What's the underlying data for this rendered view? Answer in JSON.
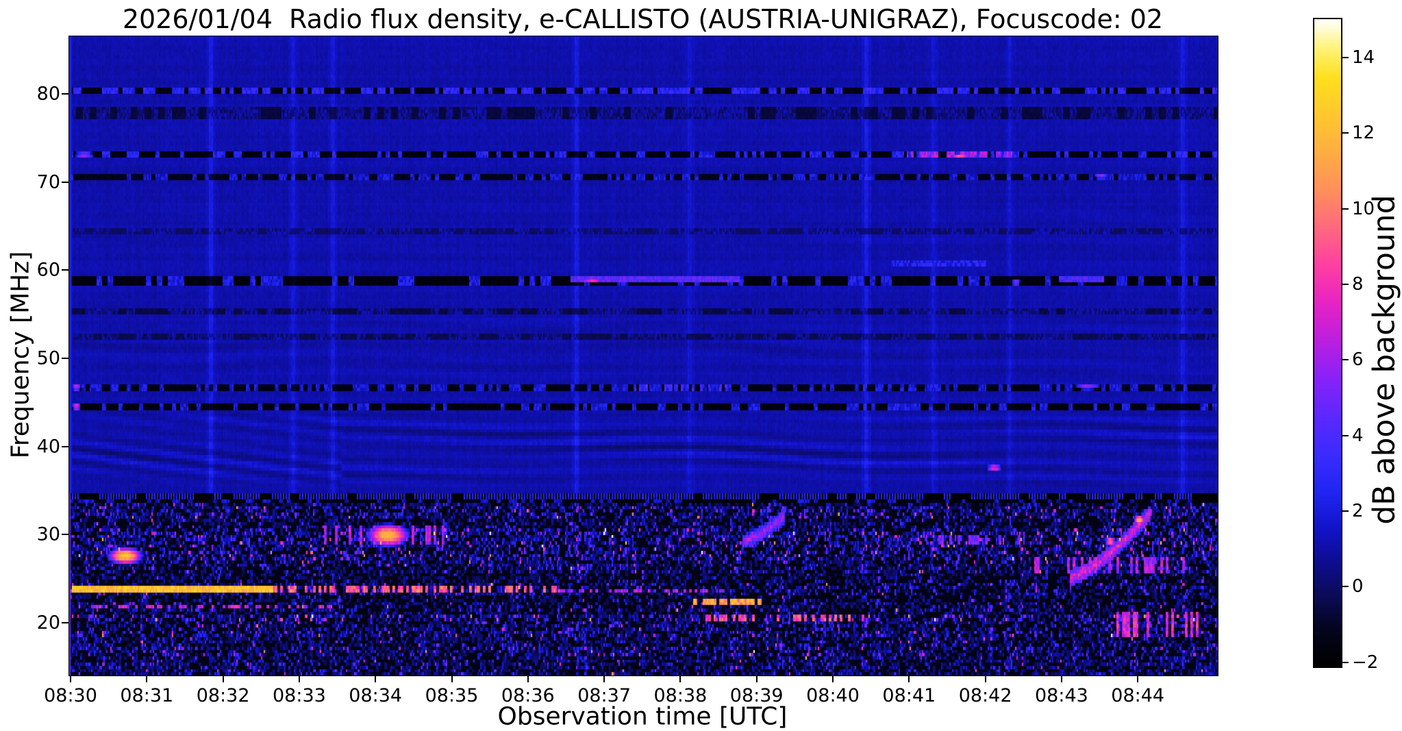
{
  "chart_data": {
    "type": "heatmap",
    "subtype": "radio-spectrogram",
    "title": "2026/01/04  Radio flux density, e-CALLISTO (AUSTRIA-UNIGRAZ), Focuscode: 02",
    "xlabel": "Observation time [UTC]",
    "ylabel": "Frequency [MHz]",
    "colorbar_label": "dB above background",
    "x_ticks": [
      "08:30",
      "08:31",
      "08:32",
      "08:33",
      "08:34",
      "08:35",
      "08:36",
      "08:37",
      "08:38",
      "08:39",
      "08:40",
      "08:41",
      "08:42",
      "08:43",
      "08:44"
    ],
    "time_start": "08:30",
    "time_end": "08:45",
    "x_span_minutes": 15.07,
    "y_ticks": [
      80,
      70,
      60,
      50,
      40,
      30,
      20
    ],
    "ylim": [
      14.1,
      86.6
    ],
    "colorbar_ticks": [
      {
        "v": 14,
        "label": "14"
      },
      {
        "v": 12,
        "label": "12"
      },
      {
        "v": 10,
        "label": "10"
      },
      {
        "v": 8,
        "label": "8"
      },
      {
        "v": 6,
        "label": "6"
      },
      {
        "v": 4,
        "label": "4"
      },
      {
        "v": 2,
        "label": "2"
      },
      {
        "v": 0,
        "label": "0"
      },
      {
        "v": -2,
        "label": "−2"
      }
    ],
    "colorbar_range": [
      -2.15,
      15.05
    ],
    "grid": false,
    "legend": "none",
    "colormap": [
      [
        -2.15,
        "#000000"
      ],
      [
        -1.2,
        "#04041c"
      ],
      [
        -0.3,
        "#0b0b55"
      ],
      [
        0.6,
        "#0d0d8f"
      ],
      [
        1.5,
        "#1113c8"
      ],
      [
        2.5,
        "#2026f2"
      ],
      [
        3.5,
        "#3c2bff"
      ],
      [
        4.5,
        "#5c28ff"
      ],
      [
        5.5,
        "#8822f8"
      ],
      [
        6.5,
        "#bb1fe0"
      ],
      [
        7.5,
        "#e623c4"
      ],
      [
        8.5,
        "#ff3fa3"
      ],
      [
        9.5,
        "#ff687f"
      ],
      [
        10.5,
        "#ff8f5c"
      ],
      [
        11.5,
        "#ffad41"
      ],
      [
        12.5,
        "#ffc72e"
      ],
      [
        13.5,
        "#ffdf1d"
      ],
      [
        14.3,
        "#fff37a"
      ],
      [
        15.05,
        "#ffffff"
      ]
    ],
    "background": {
      "upper_db": 0.82,
      "upper_noise": 0.45,
      "lower_base_db": -1.55,
      "split_mhz": 34.9
    },
    "rfi_bands": [
      {
        "freq": 80.3,
        "hw": 0.4,
        "p": 0.5,
        "on": 2.8,
        "off": -1.6,
        "seg": 3
      },
      {
        "freq": 78.0,
        "hw": 0.8,
        "p": 0.65,
        "on": 0.5,
        "off": -0.9,
        "seg": 5
      },
      {
        "freq": 73.1,
        "hw": 0.45,
        "p": 0.35,
        "on": 2.5,
        "off": -1.7,
        "seg": 3
      },
      {
        "freq": 70.7,
        "hw": 0.4,
        "p": 0.4,
        "on": 1.8,
        "off": -1.5,
        "seg": 3
      },
      {
        "freq": 64.5,
        "hw": 0.3,
        "p": 0.7,
        "on": 0.6,
        "off": -0.3,
        "seg": 6
      },
      {
        "freq": 59.0,
        "hw": 0.5,
        "p": 0.3,
        "on": 2.2,
        "off": -1.8,
        "seg": 4
      },
      {
        "freq": 55.4,
        "hw": 0.45,
        "p": 0.6,
        "on": 0.5,
        "off": -0.8,
        "seg": 6
      },
      {
        "freq": 52.6,
        "hw": 0.35,
        "p": 0.6,
        "on": 0.4,
        "off": -0.6,
        "seg": 6
      },
      {
        "freq": 46.8,
        "hw": 0.4,
        "p": 0.38,
        "on": 1.8,
        "off": -1.7,
        "seg": 3
      },
      {
        "freq": 44.6,
        "hw": 0.42,
        "p": 0.3,
        "on": 2.0,
        "off": -1.9,
        "seg": 3
      },
      {
        "freq": 34.55,
        "hw": 0.38,
        "hatch": true,
        "on": 2.6,
        "off": -1.9
      },
      {
        "freq": 33.8,
        "hw": 0.25,
        "p": 0.3,
        "on": 1.5,
        "off": -1.9,
        "seg": 3
      }
    ],
    "lower_row_zones": [
      {
        "f0": 34.2,
        "f1": 33.3,
        "act": 0.5,
        "bright": 3.5
      },
      {
        "f0": 33.3,
        "f1": 32.0,
        "act": 0.6,
        "bright": 5.0
      },
      {
        "f0": 32.0,
        "f1": 30.9,
        "act": 0.4,
        "bright": 3.5
      },
      {
        "f0": 30.9,
        "f1": 28.5,
        "act": 0.65,
        "bright": 6.0
      },
      {
        "f0": 28.5,
        "f1": 27.1,
        "act": 0.6,
        "bright": 6.0
      },
      {
        "f0": 27.1,
        "f1": 25.7,
        "act": 0.55,
        "bright": 4.0
      },
      {
        "f0": 25.7,
        "f1": 24.5,
        "act": 0.32,
        "bright": 3.0
      },
      {
        "f0": 24.5,
        "f1": 23.2,
        "act": 0.45,
        "bright": 5.0
      },
      {
        "f0": 23.2,
        "f1": 22.6,
        "act": 0.3,
        "bright": 3.5
      },
      {
        "f0": 22.6,
        "f1": 21.4,
        "act": 0.38,
        "bright": 5.0
      },
      {
        "f0": 21.4,
        "f1": 20.9,
        "act": 0.3,
        "bright": 3.0
      },
      {
        "f0": 20.9,
        "f1": 20.1,
        "act": 0.6,
        "bright": 7.0
      },
      {
        "f0": 20.1,
        "f1": 19.1,
        "act": 0.5,
        "bright": 4.5
      },
      {
        "f0": 19.1,
        "f1": 18.3,
        "act": 0.55,
        "bright": 5.0
      },
      {
        "f0": 18.3,
        "f1": 17.5,
        "act": 0.45,
        "bright": 4.0
      },
      {
        "f0": 17.5,
        "f1": 16.1,
        "act": 0.6,
        "bright": 4.5
      },
      {
        "f0": 16.1,
        "f1": 14.1,
        "act": 0.5,
        "bright": 3.5
      }
    ],
    "wave_patterns": [
      {
        "f0": 35.2,
        "f1": 44.3,
        "amp": 0.9,
        "wavelength": 1.7,
        "diag_until": 3.55
      },
      {
        "f0": 46.0,
        "f1": 56.5,
        "amp": 0.3,
        "wavelength": 2.1
      },
      {
        "f0": 60.0,
        "f1": 69.0,
        "amp": 0.15,
        "wavelength": 2.6
      }
    ],
    "vertical_streaks": [
      {
        "t": 1.82,
        "a": 1.1
      },
      {
        "t": 2.9,
        "a": 0.7
      },
      {
        "t": 3.42,
        "a": 0.8
      },
      {
        "t": 6.62,
        "a": 1.0
      },
      {
        "t": 8.1,
        "a": 0.6
      },
      {
        "t": 10.42,
        "a": 1.0
      },
      {
        "t": 11.3,
        "a": 0.6
      },
      {
        "t": 12.3,
        "a": 0.7
      },
      {
        "t": 14.58,
        "a": 0.9
      }
    ],
    "features": [
      {
        "shape": "solid",
        "t0": 0.0,
        "t1": 2.65,
        "f0": 23.35,
        "f1": 24.15,
        "peak": 13.5
      },
      {
        "shape": "dash",
        "t0": 2.65,
        "t1": 6.4,
        "f0": 23.35,
        "f1": 24.1,
        "peak": 11.0,
        "p": 0.55
      },
      {
        "shape": "dash",
        "t0": 6.4,
        "t1": 8.6,
        "f0": 23.4,
        "f1": 24.0,
        "peak": 8.0,
        "p": 0.35
      },
      {
        "shape": "blob",
        "t0": 0.45,
        "t1": 0.95,
        "f0": 26.6,
        "f1": 28.7,
        "peak": 13.0
      },
      {
        "shape": "blob",
        "t0": 3.85,
        "t1": 4.45,
        "f0": 28.6,
        "f1": 31.4,
        "peak": 12.5
      },
      {
        "shape": "dash",
        "t0": 3.2,
        "t1": 4.9,
        "f0": 28.8,
        "f1": 31.0,
        "peak": 8.0,
        "p": 0.3
      },
      {
        "shape": "dash",
        "t0": 0.25,
        "t1": 3.45,
        "f0": 21.6,
        "f1": 22.15,
        "peak": 8.5,
        "p": 0.45
      },
      {
        "shape": "dash",
        "t0": 8.15,
        "t1": 9.05,
        "f0": 22.0,
        "f1": 22.65,
        "peak": 13.0,
        "p": 0.75
      },
      {
        "shape": "dash",
        "t0": 8.3,
        "t1": 10.4,
        "f0": 20.15,
        "f1": 20.85,
        "peak": 10.5,
        "p": 0.5
      },
      {
        "shape": "band",
        "t0": 6.55,
        "t1": 8.75,
        "f0": 58.6,
        "f1": 59.45,
        "peak": 5.5
      },
      {
        "shape": "blob",
        "t0": 6.65,
        "t1": 7.0,
        "f0": 58.65,
        "f1": 59.35,
        "peak": 9.5
      },
      {
        "shape": "band",
        "t0": 12.95,
        "t1": 13.55,
        "f0": 58.6,
        "f1": 59.4,
        "peak": 5.0
      },
      {
        "shape": "dot",
        "t0": 12.32,
        "t1": 12.45,
        "f0": 58.4,
        "f1": 59.0,
        "peak": 8.0
      },
      {
        "shape": "dash",
        "t0": 10.95,
        "t1": 12.45,
        "f0": 72.75,
        "f1": 73.45,
        "peak": 7.5,
        "p": 0.6
      },
      {
        "shape": "blob",
        "t0": 11.5,
        "t1": 11.8,
        "f0": 72.8,
        "f1": 73.4,
        "peak": 10.5
      },
      {
        "shape": "band",
        "t0": 10.75,
        "t1": 12.0,
        "f0": 60.55,
        "f1": 61.15,
        "peak": 3.4
      },
      {
        "shape": "drift",
        "t0": 13.1,
        "t1": 14.15,
        "f0": 25.2,
        "f1": 32.5,
        "peak": 9.0
      },
      {
        "shape": "dot",
        "t0": 13.93,
        "t1": 14.08,
        "f0": 31.0,
        "f1": 32.4,
        "peak": 12.5
      },
      {
        "shape": "dot",
        "t0": 13.55,
        "t1": 13.7,
        "f0": 28.8,
        "f1": 29.8,
        "peak": 11.0
      },
      {
        "shape": "drift",
        "t0": 8.8,
        "t1": 9.35,
        "f0": 29.3,
        "f1": 32.2,
        "peak": 7.5
      },
      {
        "shape": "dot",
        "t0": 12.0,
        "t1": 12.2,
        "f0": 37.1,
        "f1": 38.1,
        "peak": 8.5
      },
      {
        "shape": "dot",
        "t0": 13.4,
        "t1": 13.6,
        "f0": 70.4,
        "f1": 71.0,
        "peak": 7.5
      },
      {
        "shape": "dot",
        "t0": 0.02,
        "t1": 0.3,
        "f0": 72.8,
        "f1": 73.5,
        "peak": 7.0
      },
      {
        "shape": "dot",
        "t0": 13.15,
        "t1": 13.5,
        "f0": 46.5,
        "f1": 47.1,
        "peak": 7.0
      },
      {
        "shape": "dash",
        "t0": 7.3,
        "t1": 8.6,
        "f0": 46.5,
        "f1": 47.1,
        "peak": 5.0,
        "p": 0.4
      },
      {
        "shape": "dot",
        "t0": 0.0,
        "t1": 0.12,
        "f0": 44.2,
        "f1": 45.0,
        "peak": 9.0
      },
      {
        "shape": "dot",
        "t0": 0.0,
        "t1": 0.12,
        "f0": 46.4,
        "f1": 47.2,
        "peak": 8.0
      },
      {
        "shape": "dash",
        "t0": 11.2,
        "t1": 12.5,
        "f0": 28.9,
        "f1": 30.2,
        "peak": 7.0,
        "p": 0.3
      },
      {
        "shape": "dash",
        "t0": 12.6,
        "t1": 14.6,
        "f0": 25.8,
        "f1": 27.6,
        "peak": 8.0,
        "p": 0.35
      },
      {
        "shape": "dash",
        "t0": 13.3,
        "t1": 14.9,
        "f0": 18.6,
        "f1": 21.2,
        "peak": 9.0,
        "p": 0.3
      }
    ]
  }
}
